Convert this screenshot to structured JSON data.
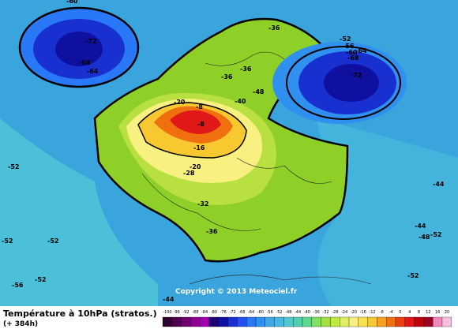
{
  "header": {
    "title": "Température à 10hPa (stratos.)",
    "subtitle": "(+ 384h)",
    "copyright": "Copyright © 2013 Meteociel.fr"
  },
  "contour_labels": [
    -60,
    -72,
    -68,
    -64,
    -36,
    -52,
    -56,
    -60,
    -64,
    -68,
    -72,
    -36,
    -36,
    -48,
    -40,
    -20,
    -8,
    -8,
    -16,
    -20,
    -28,
    -32,
    -36,
    -52,
    -52,
    -52,
    -52,
    -56,
    -44,
    -44,
    -48,
    -52,
    -52,
    -44
  ],
  "colorbar": {
    "ticks": [
      -100,
      -96,
      -92,
      -88,
      -84,
      -80,
      -76,
      -72,
      -68,
      -64,
      -60,
      -56,
      -52,
      -48,
      -44,
      -40,
      -36,
      -32,
      -28,
      -24,
      -20,
      -16,
      -12,
      -8,
      -4,
      0,
      4,
      8,
      12,
      16,
      20
    ],
    "colors": [
      "#300030",
      "#500050",
      "#700070",
      "#900090",
      "#a000b0",
      "#200070",
      "#1010a0",
      "#1830d0",
      "#2050f0",
      "#2878f8",
      "#3090f0",
      "#40a8e8",
      "#48b8e0",
      "#50c8d0",
      "#50d0b0",
      "#60d890",
      "#80e060",
      "#a0e040",
      "#c0e840",
      "#e0f060",
      "#f8f080",
      "#f8e050",
      "#f8c830",
      "#f8a020",
      "#f07010",
      "#e84010",
      "#e01818",
      "#c00010",
      "#a00020",
      "#f088c0",
      "#f8c0e0"
    ]
  }
}
